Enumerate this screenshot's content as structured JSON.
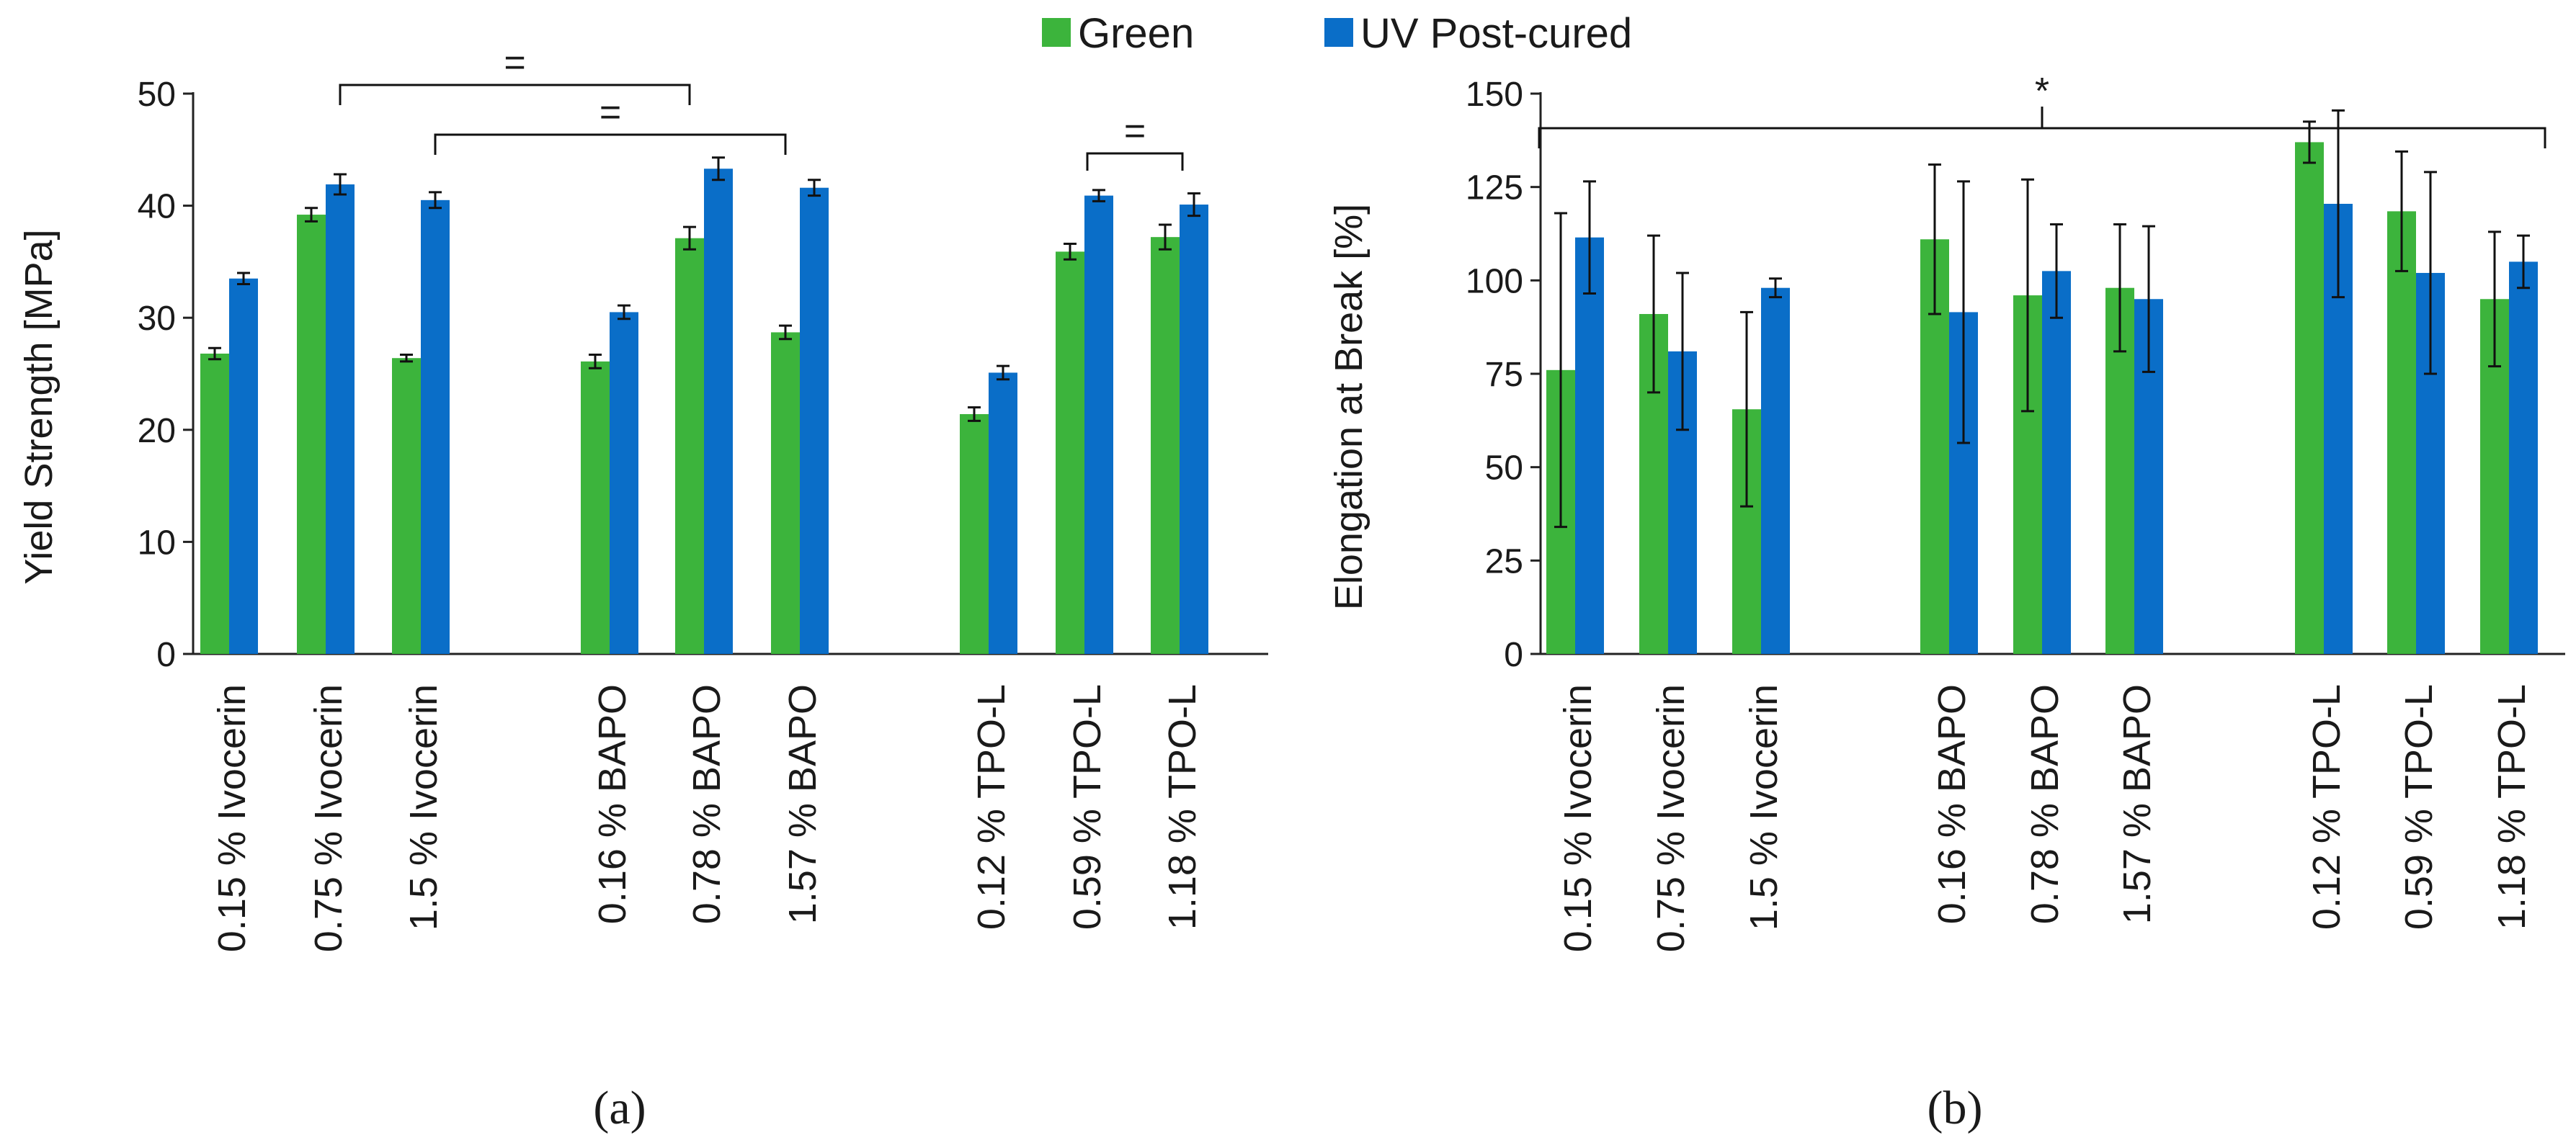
{
  "legend": {
    "green_label": "Green",
    "uv_label": "UV Post-cured"
  },
  "colors": {
    "green": "#3cb43c",
    "uv": "#0a6ec8",
    "axis": "#222222"
  },
  "chart_data": [
    {
      "type": "bar",
      "panel_label": "(a)",
      "ylabel": "Yield Strength [MPa]",
      "ylim": [
        0,
        50
      ],
      "yticks": [
        "0",
        "10",
        "20",
        "30",
        "40",
        "50"
      ],
      "categories": [
        "0.15 % Ivocerin",
        "0.75 % Ivocerin",
        "1.5 % Ivocerin",
        "0.16 % BAPO",
        "0.78 % BAPO",
        "1.57 % BAPO",
        "0.12 % TPO-L",
        "0.59 % TPO-L",
        "1.18 % TPO-L"
      ],
      "series": [
        {
          "name": "Green",
          "values": [
            26.8,
            39.2,
            26.4,
            26.1,
            37.1,
            28.7,
            21.4,
            35.9,
            37.2
          ],
          "errors": [
            0.5,
            0.6,
            0.3,
            0.6,
            1.0,
            0.6,
            0.6,
            0.7,
            1.1
          ]
        },
        {
          "name": "UV Post-cured",
          "values": [
            33.5,
            41.9,
            40.5,
            30.5,
            43.3,
            41.6,
            25.1,
            40.9,
            40.1
          ],
          "errors": [
            0.5,
            0.9,
            0.7,
            0.6,
            1.0,
            0.7,
            0.6,
            0.5,
            1.0
          ]
        }
      ],
      "brackets": [
        {
          "from": 1,
          "to": 4,
          "label": "="
        },
        {
          "from": 2,
          "to": 5,
          "label": "="
        },
        {
          "from": 7,
          "to": 8,
          "label": "="
        }
      ]
    },
    {
      "type": "bar",
      "panel_label": "(b)",
      "ylabel": "Elongation at Break [%]",
      "ylim": [
        0,
        150
      ],
      "yticks": [
        "0",
        "25",
        "50",
        "75",
        "100",
        "125",
        "150"
      ],
      "categories": [
        "0.15 % Ivocerin",
        "0.75 % Ivocerin",
        "1.5 % Ivocerin",
        "0.16 % BAPO",
        "0.78 % BAPO",
        "1.57 % BAPO",
        "0.12 % TPO-L",
        "0.59 % TPO-L",
        "1.18 % TPO-L"
      ],
      "series": [
        {
          "name": "Green",
          "values": [
            76,
            91,
            65.5,
            111,
            96,
            98,
            137,
            118.5,
            95
          ],
          "errors": [
            42,
            21,
            26,
            20,
            31,
            17,
            5.5,
            16,
            18
          ]
        },
        {
          "name": "UV Post-cured",
          "values": [
            111.5,
            81,
            98,
            91.5,
            102.5,
            95,
            120.5,
            102,
            105
          ],
          "errors": [
            15,
            21,
            2.5,
            35,
            12.5,
            19.5,
            25,
            27,
            7
          ]
        }
      ],
      "brackets": [
        {
          "from": 0,
          "to": 8,
          "label": "*"
        }
      ]
    }
  ]
}
